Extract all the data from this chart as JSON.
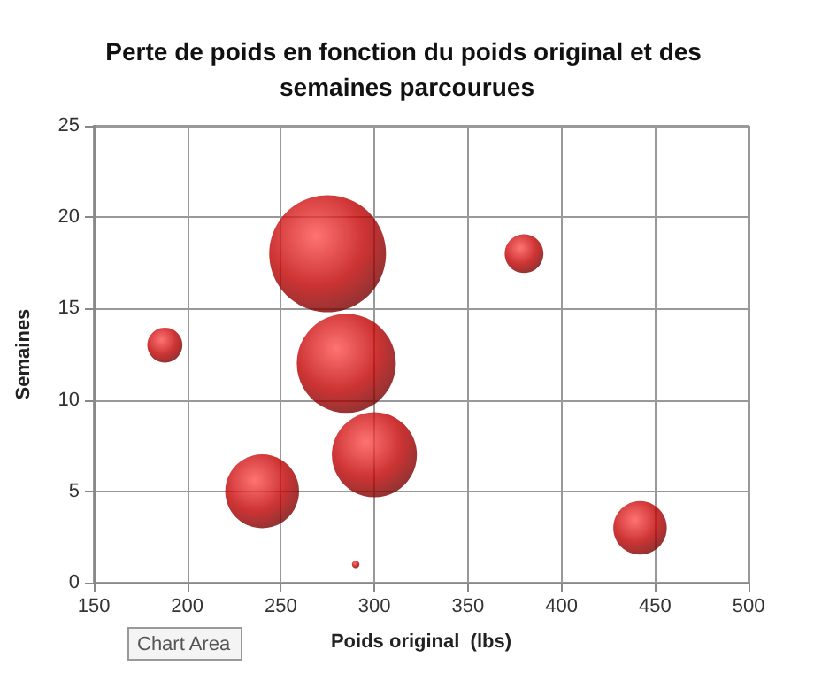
{
  "chart_data": {
    "type": "bubble",
    "title": "Perte de poids en fonction du poids original et des semaines parcourues",
    "xlabel": "Poids original  (lbs)",
    "ylabel": "Semaines",
    "x": [
      188,
      240,
      275,
      285,
      300,
      290,
      380,
      442
    ],
    "values": [
      13,
      5,
      18,
      12,
      7,
      1,
      18,
      3
    ],
    "sizes": [
      0.09,
      0.4,
      1,
      0.72,
      0.53,
      0.004,
      0.11,
      0.21
    ],
    "color": "#c00000",
    "xlim": [
      150,
      500
    ],
    "xticks": [
      150,
      200,
      250,
      300,
      350,
      400,
      450,
      500
    ],
    "ylim": [
      0,
      25
    ],
    "yticks": [
      0,
      5,
      10,
      15,
      20,
      25
    ],
    "grid": true,
    "annotations": [
      "Chart Area"
    ]
  }
}
